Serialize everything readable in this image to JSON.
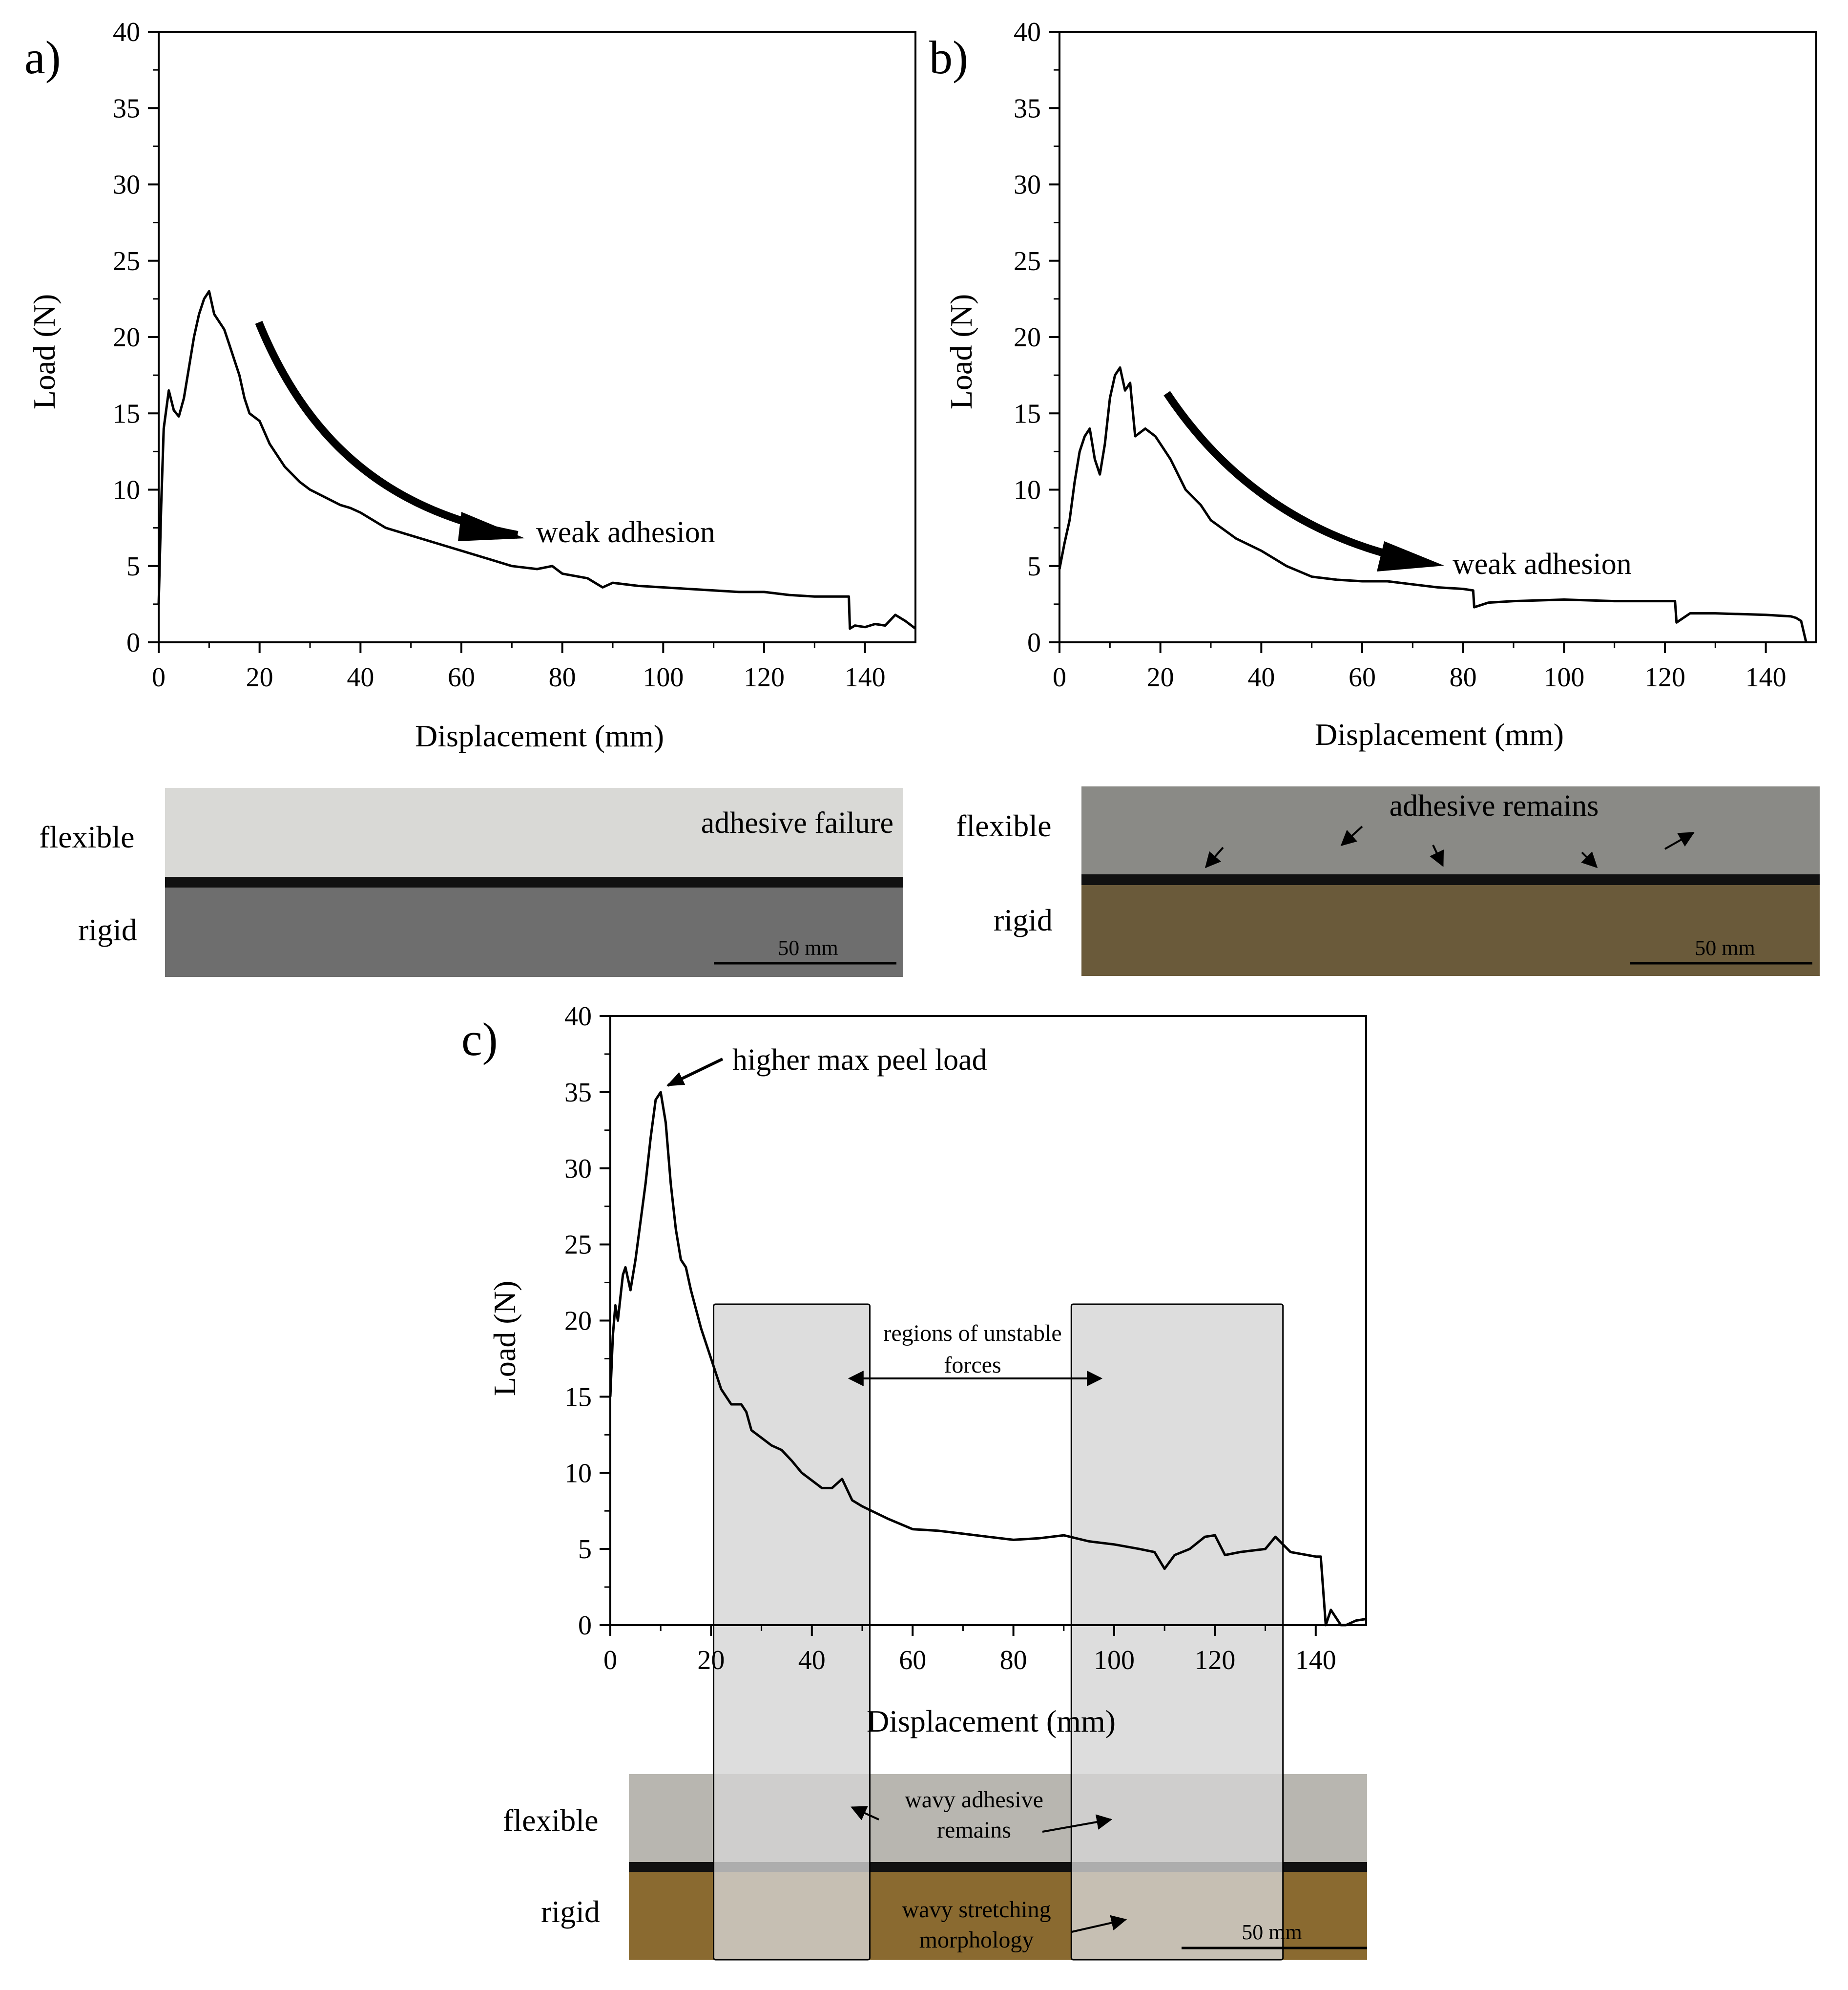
{
  "chart_data": [
    {
      "id": "a",
      "type": "line",
      "panel_label": "a)",
      "xlabel": "Displacement (mm)",
      "ylabel": "Load (N)",
      "xlim": [
        0,
        150
      ],
      "ylim": [
        0,
        40
      ],
      "xticks": [
        0,
        20,
        40,
        60,
        80,
        100,
        120,
        140
      ],
      "yticks": [
        0,
        5,
        10,
        15,
        20,
        25,
        30,
        35,
        40
      ],
      "series": [
        {
          "x": [
            0,
            0.5,
            1,
            2,
            3,
            4,
            5,
            6,
            7,
            8,
            9,
            10,
            11,
            12,
            13,
            14,
            15,
            16,
            17,
            18,
            20,
            22,
            25,
            28,
            30,
            33,
            36,
            38,
            40,
            45,
            50,
            55,
            60,
            65,
            70,
            75,
            78,
            80,
            85,
            88,
            90,
            95,
            100,
            105,
            110,
            115,
            120,
            125,
            130,
            135,
            136.8,
            137,
            138,
            140,
            142,
            144,
            146,
            148,
            150
          ],
          "y": [
            2.5,
            9,
            14,
            16.5,
            15.2,
            14.8,
            16,
            18,
            20,
            21.5,
            22.5,
            23,
            21.5,
            21,
            20.5,
            19.5,
            18.5,
            17.5,
            16,
            15,
            14.5,
            13,
            11.5,
            10.5,
            10,
            9.5,
            9,
            8.8,
            8.5,
            7.5,
            7,
            6.5,
            6,
            5.5,
            5,
            4.8,
            5,
            4.5,
            4.2,
            3.6,
            3.9,
            3.7,
            3.6,
            3.5,
            3.4,
            3.3,
            3.3,
            3.1,
            3.0,
            3.0,
            3.0,
            0.9,
            1.1,
            1.0,
            1.2,
            1.1,
            1.8,
            1.4,
            0.9
          ]
        }
      ],
      "annotations": [
        "weak adhesion"
      ]
    },
    {
      "id": "b",
      "type": "line",
      "panel_label": "b)",
      "xlabel": "Displacement (mm)",
      "ylabel": "Load (N)",
      "xlim": [
        0,
        150
      ],
      "ylim": [
        0,
        40
      ],
      "xticks": [
        0,
        20,
        40,
        60,
        80,
        100,
        120,
        140
      ],
      "yticks": [
        0,
        5,
        10,
        15,
        20,
        25,
        30,
        35,
        40
      ],
      "series": [
        {
          "x": [
            0,
            1,
            2,
            3,
            4,
            5,
            6,
            7,
            8,
            9,
            10,
            11,
            12,
            13,
            14,
            15,
            17,
            19,
            20,
            22,
            25,
            28,
            30,
            35,
            40,
            45,
            50,
            55,
            60,
            65,
            70,
            75,
            80,
            82,
            82.2,
            85,
            90,
            100,
            110,
            120,
            122,
            122.3,
            125,
            130,
            140,
            145,
            146,
            147,
            148
          ],
          "y": [
            4.8,
            6.5,
            8,
            10.5,
            12.5,
            13.5,
            14,
            12,
            11,
            13,
            16,
            17.5,
            18,
            16.5,
            17,
            13.5,
            14,
            13.5,
            13,
            12,
            10,
            9,
            8,
            6.8,
            6,
            5,
            4.3,
            4.1,
            4.0,
            4.0,
            3.8,
            3.6,
            3.5,
            3.4,
            2.3,
            2.6,
            2.7,
            2.8,
            2.7,
            2.7,
            2.7,
            1.3,
            1.9,
            1.9,
            1.8,
            1.7,
            1.6,
            1.4,
            0.0
          ]
        }
      ],
      "annotations": [
        "weak adhesion"
      ]
    },
    {
      "id": "c",
      "type": "line",
      "panel_label": "c)",
      "xlabel": "Displacement (mm)",
      "ylabel": "Load (N)",
      "xlim": [
        0,
        150
      ],
      "ylim": [
        0,
        40
      ],
      "xticks": [
        0,
        20,
        40,
        60,
        80,
        100,
        120,
        140
      ],
      "yticks": [
        0,
        5,
        10,
        15,
        20,
        25,
        30,
        35,
        40
      ],
      "series": [
        {
          "x": [
            0,
            0.5,
            1,
            1.5,
            2,
            2.5,
            3,
            4,
            5,
            6,
            7,
            8,
            9,
            10,
            11,
            12,
            13,
            14,
            15,
            16,
            18,
            20,
            22,
            24,
            26,
            27,
            28,
            30,
            32,
            34,
            36,
            38,
            40,
            42,
            44,
            46,
            48,
            50,
            55,
            60,
            65,
            70,
            75,
            80,
            85,
            90,
            95,
            100,
            105,
            108,
            110,
            112,
            115,
            118,
            120,
            122,
            125,
            130,
            132,
            135,
            140,
            141,
            142,
            143,
            144,
            145,
            146,
            148,
            150
          ],
          "y": [
            15,
            19,
            21,
            20,
            21.5,
            23,
            23.5,
            22,
            24,
            26.5,
            29,
            32,
            34.5,
            35,
            33,
            29,
            26,
            24,
            23.5,
            22,
            19.5,
            17.5,
            15.5,
            14.5,
            14.5,
            14,
            12.8,
            12.3,
            11.8,
            11.5,
            10.8,
            10,
            9.5,
            9,
            9,
            9.6,
            8.2,
            7.8,
            7,
            6.3,
            6.2,
            6,
            5.8,
            5.6,
            5.7,
            5.9,
            5.5,
            5.3,
            5.0,
            4.8,
            3.7,
            4.6,
            5.0,
            5.8,
            5.9,
            4.6,
            4.8,
            5.0,
            5.8,
            4.8,
            4.5,
            4.5,
            0.0,
            1.0,
            0.5,
            0.0,
            0.0,
            0.3,
            0.4
          ]
        }
      ],
      "shaded_regions": [
        [
          20.5,
          51.5
        ],
        [
          91.5,
          133.5
        ]
      ],
      "annotations": [
        "higher max peel load",
        "regions of unstable",
        "forces"
      ]
    }
  ],
  "strips": {
    "a": {
      "flexible_label": "flexible",
      "rigid_label": "rigid",
      "note": "adhesive failure",
      "scale": "50 mm"
    },
    "b": {
      "flexible_label": "flexible",
      "rigid_label": "rigid",
      "note": "adhesive remains",
      "scale": "50 mm"
    },
    "c": {
      "flexible_label": "flexible",
      "rigid_label": "rigid",
      "note1a": "wavy adhesive",
      "note1b": "remains",
      "note2a": "wavy stretching",
      "note2b": "morphology",
      "scale": "50 mm"
    }
  },
  "colors": {
    "line": "#000000",
    "shade": "#d4d4d4",
    "strip_a_flex": "#d9d9d6",
    "strip_a_rigid": "#6e6e6e",
    "strip_b_flex": "#8a8a86",
    "strip_b_rigid": "#6a5a3a",
    "strip_c_flex": "#b8b6b0",
    "strip_c_rigid": "#8a6a30"
  }
}
